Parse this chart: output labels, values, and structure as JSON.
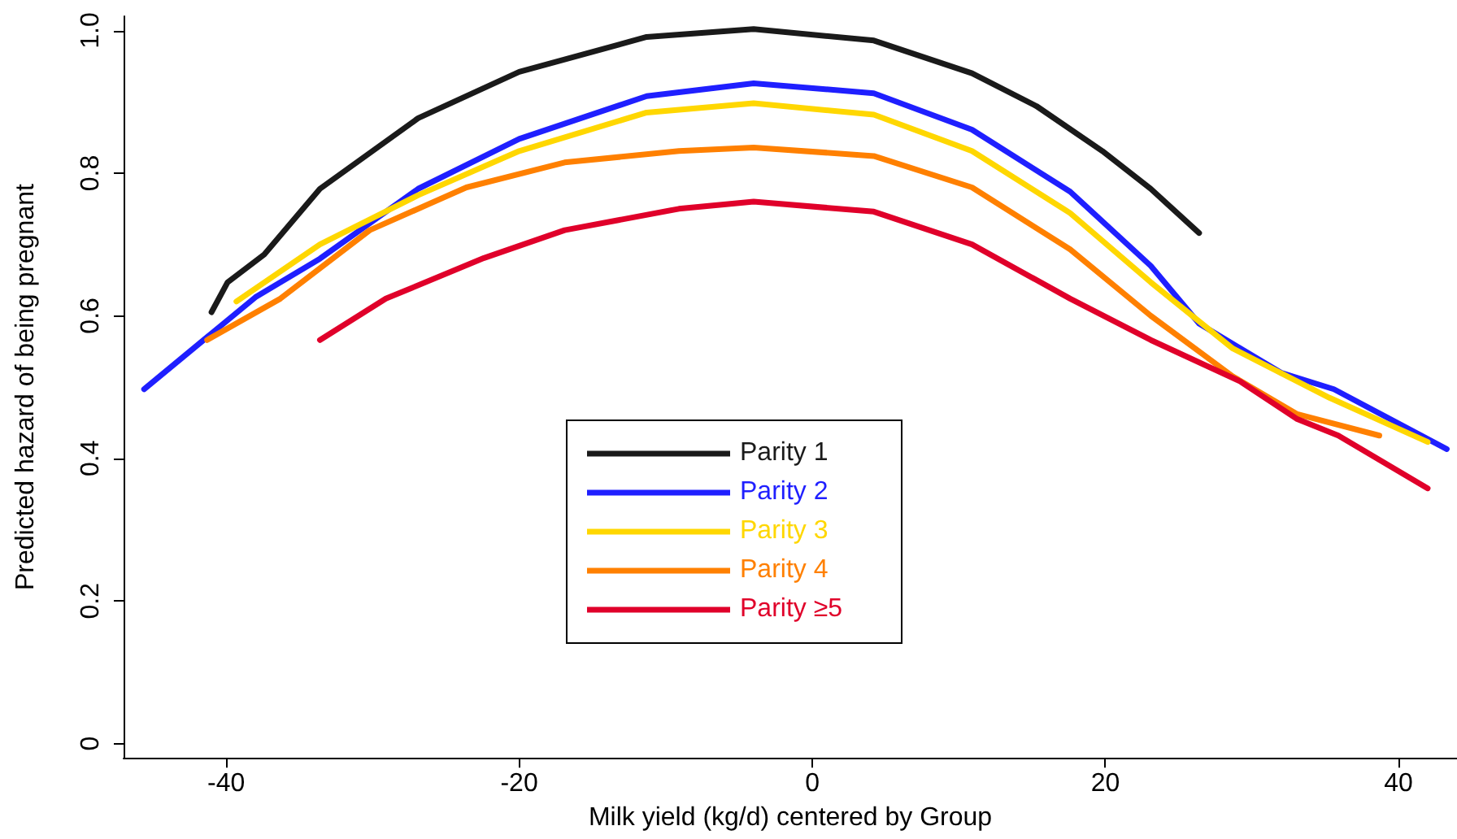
{
  "chart_data": {
    "type": "line",
    "xlabel": "Milk yield (kg/d) centered by Group",
    "ylabel": "Predicted hazard of being pregnant",
    "xlim": [
      -47,
      44
    ],
    "ylim": [
      -0.02,
      1.02
    ],
    "xticks": [
      -40,
      -20,
      0,
      20,
      40
    ],
    "yticks": [
      {
        "value": 0,
        "label": "0"
      },
      0.2,
      0.4,
      0.6,
      0.8,
      {
        "value": 1,
        "label": "1.0"
      }
    ],
    "grid": false,
    "legend": "bottom",
    "marker": "none",
    "line_style": "solid",
    "series": [
      {
        "name": "Parity 1",
        "color": "#1a1a1a",
        "x": [
          -41,
          -39.9,
          -37.4,
          -33.6,
          -26.9,
          -20,
          -11.3,
          -4,
          4.2,
          10.9,
          15.3,
          19.8,
          23.1,
          26.4
        ],
        "values": [
          0.605,
          0.647,
          0.686,
          0.778,
          0.877,
          0.942,
          0.991,
          1.002,
          0.986,
          0.94,
          0.894,
          0.831,
          0.778,
          0.716
        ]
      },
      {
        "name": "Parity 2",
        "color": "#1f1fff",
        "x": [
          -45.6,
          -38,
          -33.6,
          -26.9,
          -20,
          -11.3,
          -4,
          4.2,
          10.9,
          17.6,
          23.1,
          26.4,
          32,
          35.6,
          43.3
        ],
        "values": [
          0.497,
          0.626,
          0.68,
          0.778,
          0.848,
          0.908,
          0.926,
          0.912,
          0.861,
          0.774,
          0.67,
          0.589,
          0.52,
          0.497,
          0.413
        ]
      },
      {
        "name": "Parity 3",
        "color": "#ffd700",
        "x": [
          -39.3,
          -33.6,
          -26.9,
          -20,
          -11.3,
          -4,
          4.2,
          10.9,
          17.6,
          23.1,
          28.7,
          35.3,
          42
        ],
        "values": [
          0.62,
          0.7,
          0.769,
          0.831,
          0.885,
          0.898,
          0.882,
          0.831,
          0.744,
          0.647,
          0.554,
          0.485,
          0.423
        ]
      },
      {
        "name": "Parity 4",
        "color": "#ff8000",
        "x": [
          -41.3,
          -36.3,
          -30.2,
          -23.6,
          -16.9,
          -9.1,
          -4,
          4.2,
          10.9,
          17.6,
          23.1,
          28.7,
          33.1,
          38.7
        ],
        "values": [
          0.566,
          0.624,
          0.72,
          0.78,
          0.815,
          0.831,
          0.836,
          0.824,
          0.78,
          0.693,
          0.6,
          0.515,
          0.462,
          0.432
        ]
      },
      {
        "name": "Parity ≥5",
        "color": "#e0002a",
        "x": [
          -33.6,
          -29.1,
          -22.4,
          -16.9,
          -9.1,
          -4,
          4.2,
          10.9,
          17.6,
          23.1,
          29.2,
          33.1,
          35.9,
          42
        ],
        "values": [
          0.566,
          0.624,
          0.681,
          0.72,
          0.75,
          0.76,
          0.746,
          0.7,
          0.624,
          0.566,
          0.508,
          0.455,
          0.432,
          0.358
        ]
      }
    ]
  }
}
